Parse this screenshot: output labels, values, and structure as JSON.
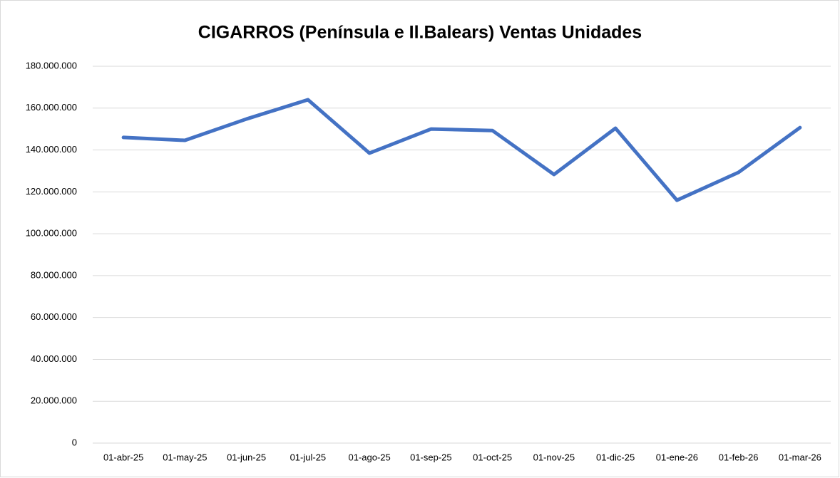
{
  "chart_data": {
    "type": "line",
    "title": "CIGARROS (Península e Il.Balears) Ventas Unidades",
    "categories": [
      "01-abr-25",
      "01-may-25",
      "01-jun-25",
      "01-jul-25",
      "01-ago-25",
      "01-sep-25",
      "01-oct-25",
      "01-nov-25",
      "01-dic-25",
      "01-ene-26",
      "01-feb-26",
      "01-mar-26"
    ],
    "series": [
      {
        "name": "CIGARROS",
        "color": "#4472c4",
        "values": [
          146000000,
          144600000,
          154800000,
          164000000,
          138500000,
          150000000,
          149300000,
          128300000,
          150400000,
          116000000,
          129300000,
          150700000
        ]
      }
    ],
    "ylim": [
      0,
      180000000
    ],
    "yticks": [
      0,
      {
        "value": 20000000,
        "label": "20.000.000"
      },
      {
        "value": 40000000,
        "label": "40.000.000"
      },
      {
        "value": 60000000,
        "label": "60.000.000"
      },
      {
        "value": 80000000,
        "label": "80.000.000"
      },
      {
        "value": 100000000,
        "label": "100.000.000"
      },
      {
        "value": 120000000,
        "label": "120.000.000"
      },
      {
        "value": 140000000,
        "label": "140.000.000"
      },
      {
        "value": 160000000,
        "label": "160.000.000"
      },
      {
        "value": 180000000,
        "label": "180.000.000"
      }
    ],
    "grid": true
  }
}
